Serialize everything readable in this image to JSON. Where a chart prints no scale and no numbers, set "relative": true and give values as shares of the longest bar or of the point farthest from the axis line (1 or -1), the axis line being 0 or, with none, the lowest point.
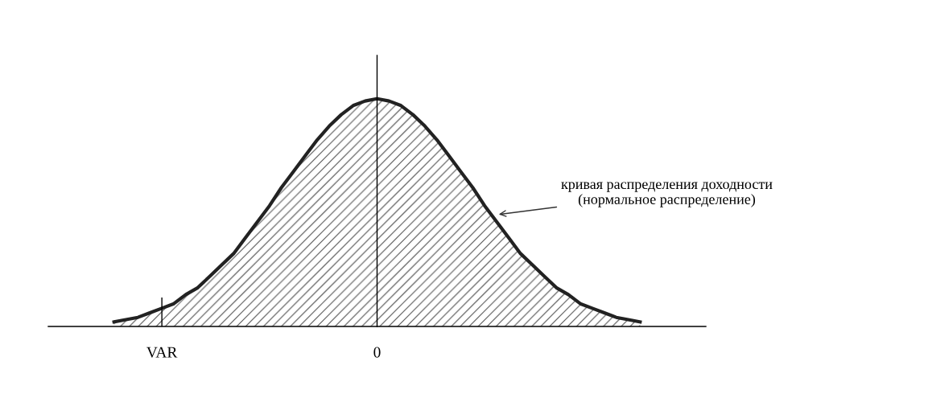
{
  "chart_data": {
    "type": "area",
    "relative": true,
    "categories": [
      null,
      null,
      null,
      null,
      "VAR",
      null,
      null,
      null,
      null,
      null,
      null,
      null,
      null,
      null,
      null,
      null,
      null,
      null,
      null,
      null,
      null,
      null,
      "0",
      null,
      null,
      null,
      null,
      null,
      null,
      null,
      null,
      null,
      null,
      null,
      null,
      null,
      null,
      null,
      null,
      null,
      null,
      null,
      null,
      null,
      null
    ],
    "series": [
      {
        "color": "#222222",
        "values": [
          0.02,
          0.03,
          0.04,
          0.06,
          0.08,
          0.1,
          0.14,
          0.17,
          0.22,
          0.27,
          0.32,
          0.39,
          0.46,
          0.53,
          0.61,
          0.68,
          0.75,
          0.82,
          0.88,
          0.93,
          0.97,
          0.99,
          1,
          0.99,
          0.97,
          0.93,
          0.88,
          0.82,
          0.75,
          0.68,
          0.61,
          0.53,
          0.46,
          0.39,
          0.32,
          0.27,
          0.22,
          0.17,
          0.14,
          0.1,
          0.08,
          0.06,
          0.04,
          0.03,
          0.02
        ]
      }
    ],
    "ref_lines": [
      {
        "axis": "x",
        "value": "VAR"
      }
    ],
    "annotations": [
      "кривая распределения доходности\n(нормальное распределение)"
    ]
  }
}
